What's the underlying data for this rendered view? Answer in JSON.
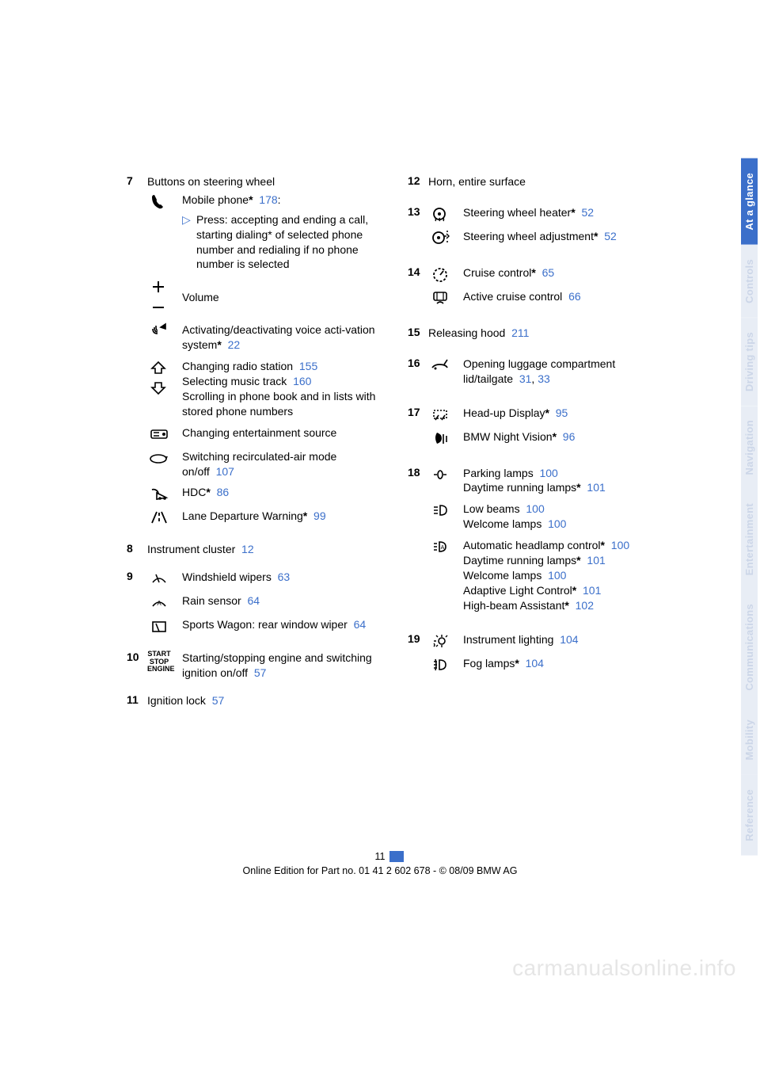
{
  "colors": {
    "link": "#3b6fca",
    "tab_active_bg": "#3b6fca",
    "tab_inactive_bg": "#e8edf5",
    "tab_inactive_fg": "#ccd6e8"
  },
  "footer": {
    "page_number": "11",
    "edition_line": "Online Edition for Part no. 01 41 2 602 678 - © 08/09 BMW AG"
  },
  "watermark": "carmanualsonline.info",
  "tabs": [
    {
      "label": "At a glance",
      "active": true
    },
    {
      "label": "Controls",
      "active": false
    },
    {
      "label": "Driving tips",
      "active": false
    },
    {
      "label": "Navigation",
      "active": false
    },
    {
      "label": "Entertainment",
      "active": false
    },
    {
      "label": "Communications",
      "active": false
    },
    {
      "label": "Mobility",
      "active": false
    },
    {
      "label": "Reference",
      "active": false
    }
  ],
  "left": {
    "e7": {
      "num": "7",
      "title": "Buttons on steering wheel",
      "phone": {
        "lead": "Mobile phone",
        "star": "*",
        "ref": "178",
        "colon": ":",
        "bullet": "Press: accepting and ending a call, starting dialing* of selected phone number and redialing if no phone number is selected"
      },
      "volume": "Volume",
      "voice": {
        "text": "Activating/deactivating voice acti-vation system",
        "star": "*",
        "ref": "22"
      },
      "updown": {
        "l1a": "Changing radio station",
        "l1ref": "155",
        "l2a": "Selecting music track",
        "l2ref": "160",
        "l3": "Scrolling in phone book and in lists with stored phone numbers"
      },
      "source": "Changing entertainment source",
      "recirc": {
        "text": "Switching recirculated-air mode on/off",
        "ref": "107"
      },
      "hdc": {
        "text": "HDC",
        "star": "*",
        "ref": "86"
      },
      "lane": {
        "text": "Lane Departure Warning",
        "star": "*",
        "ref": "99"
      }
    },
    "e8": {
      "num": "8",
      "text": "Instrument cluster",
      "ref": "12"
    },
    "e9": {
      "num": "9",
      "wipers": {
        "text": "Windshield wipers",
        "ref": "63"
      },
      "rain": {
        "text": "Rain sensor",
        "ref": "64"
      },
      "rear": {
        "text": "Sports Wagon: rear window wiper",
        "ref": "64"
      }
    },
    "e10": {
      "num": "10",
      "icon_text": "START STOP ENGINE",
      "text": "Starting/stopping engine and switching ignition on/off",
      "ref": "57"
    },
    "e11": {
      "num": "11",
      "text": "Ignition lock",
      "ref": "57"
    }
  },
  "right": {
    "e12": {
      "num": "12",
      "text": "Horn, entire surface"
    },
    "e13": {
      "num": "13",
      "heater": {
        "text": "Steering wheel heater",
        "star": "*",
        "ref": "52"
      },
      "adjust": {
        "text": "Steering wheel adjustment",
        "star": "*",
        "ref": "52"
      }
    },
    "e14": {
      "num": "14",
      "cruise": {
        "text": "Cruise control",
        "star": "*",
        "ref": "65"
      },
      "active": {
        "text": "Active cruise control",
        "ref": "66"
      }
    },
    "e15": {
      "num": "15",
      "text": "Releasing hood",
      "ref": "211"
    },
    "e16": {
      "num": "16",
      "text": "Opening luggage compartment lid/tailgate",
      "ref1": "31",
      "sep": ", ",
      "ref2": "33"
    },
    "e17": {
      "num": "17",
      "hud": {
        "text": "Head-up Display",
        "star": "*",
        "ref": "95"
      },
      "night": {
        "text": "BMW Night Vision",
        "star": "*",
        "ref": "96"
      }
    },
    "e18": {
      "num": "18",
      "row1": {
        "l1": "Parking lamps",
        "l1ref": "100",
        "l2": "Daytime running lamps",
        "l2star": "*",
        "l2ref": "101"
      },
      "row2": {
        "l1": "Low beams",
        "l1ref": "100",
        "l2": "Welcome lamps",
        "l2ref": "100"
      },
      "row3": {
        "l1": "Automatic headlamp control",
        "l1star": "*",
        "l1ref": "100",
        "l2": "Daytime running lamps",
        "l2star": "*",
        "l2ref": "101",
        "l3": "Welcome lamps",
        "l3ref": "100",
        "l4": "Adaptive Light Control",
        "l4star": "*",
        "l4ref": "101",
        "l5": "High-beam Assistant",
        "l5star": "*",
        "l5ref": "102"
      }
    },
    "e19": {
      "num": "19",
      "instr": {
        "text": "Instrument lighting",
        "ref": "104"
      },
      "fog": {
        "text": "Fog lamps",
        "star": "*",
        "ref": "104"
      }
    }
  }
}
